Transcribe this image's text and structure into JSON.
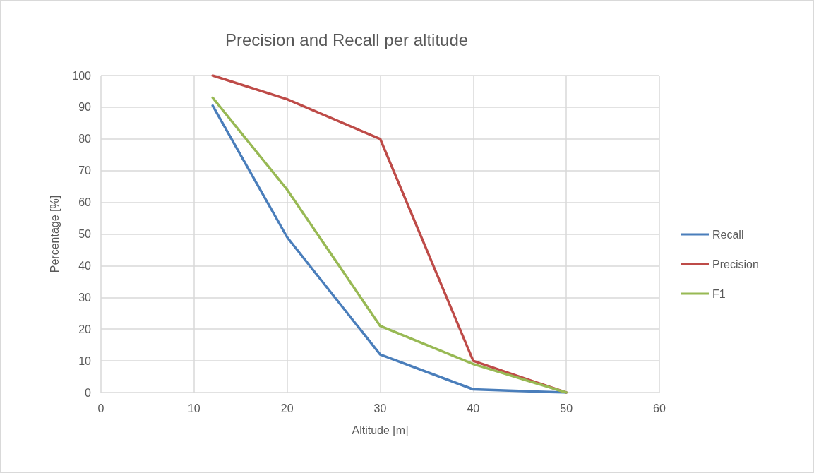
{
  "chart_data": {
    "type": "line",
    "title": "Precision and Recall per altitude",
    "xlabel": "Altitude [m]",
    "ylabel": "Percentage [%]",
    "x": [
      12,
      20,
      30,
      40,
      50
    ],
    "series": [
      {
        "name": "Recall",
        "color": "#4a7ebb",
        "values": [
          90.5,
          49,
          12,
          1,
          0
        ]
      },
      {
        "name": "Precision",
        "color": "#be4b48",
        "values": [
          100,
          92.5,
          80,
          10,
          0
        ]
      },
      {
        "name": "F1",
        "color": "#98b954",
        "values": [
          93,
          64,
          21,
          9,
          0
        ]
      }
    ],
    "xlim": [
      0,
      60
    ],
    "xticks": [
      0,
      10,
      20,
      30,
      40,
      50,
      60
    ],
    "ylim": [
      0,
      100
    ],
    "yticks": [
      0,
      10,
      20,
      30,
      40,
      50,
      60,
      70,
      80,
      90,
      100
    ],
    "grid": true,
    "legend": "right",
    "marker": "none",
    "line_style": "solid"
  }
}
